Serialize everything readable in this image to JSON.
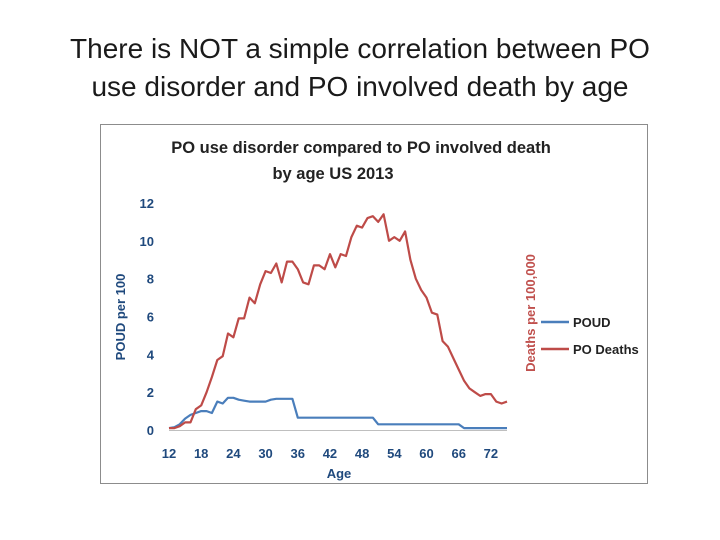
{
  "slide": {
    "title_line1": "There is NOT a simple correlation between PO",
    "title_line2": "use disorder and PO involved death by age"
  },
  "chart_data": {
    "type": "line",
    "title": "PO use disorder compared to PO involved death by age US 2013",
    "title_lines": [
      "PO use disorder compared to PO involved death",
      "by age US 2013"
    ],
    "xlabel": "Age",
    "ylabel": "POUD per 100",
    "y2label": "Deaths per 100,000",
    "xlim": [
      12,
      75
    ],
    "ylim": [
      0,
      12
    ],
    "xticks": [
      12,
      18,
      24,
      30,
      36,
      42,
      48,
      54,
      60,
      66,
      72
    ],
    "yticks": [
      0,
      2,
      4,
      6,
      8,
      10,
      12
    ],
    "legend_position": "right",
    "colors": {
      "POUD": "#4a7ebb",
      "PO Deaths": "#be4b48",
      "axis_left": "#1f497d",
      "axis_right": "#c0504d",
      "tick_x": "#1f497d"
    },
    "series": [
      {
        "name": "POUD",
        "x": [
          12,
          13,
          14,
          15,
          16,
          17,
          18,
          19,
          20,
          21,
          22,
          23,
          24,
          25,
          26,
          27,
          28,
          29,
          30,
          31,
          32,
          33,
          34,
          35,
          36,
          37,
          38,
          39,
          40,
          41,
          42,
          43,
          44,
          45,
          46,
          47,
          48,
          49,
          50,
          51,
          52,
          53,
          54,
          55,
          56,
          57,
          58,
          59,
          60,
          61,
          62,
          63,
          64,
          65,
          66,
          67,
          68,
          69,
          70,
          71,
          72,
          73,
          74,
          75
        ],
        "values": [
          0.1,
          0.15,
          0.3,
          0.6,
          0.8,
          0.9,
          1.0,
          1.0,
          0.9,
          1.5,
          1.4,
          1.7,
          1.7,
          1.6,
          1.55,
          1.5,
          1.5,
          1.5,
          1.5,
          1.6,
          1.65,
          1.65,
          1.65,
          1.65,
          0.65,
          0.65,
          0.65,
          0.65,
          0.65,
          0.65,
          0.65,
          0.65,
          0.65,
          0.65,
          0.65,
          0.65,
          0.65,
          0.65,
          0.65,
          0.3,
          0.3,
          0.3,
          0.3,
          0.3,
          0.3,
          0.3,
          0.3,
          0.3,
          0.3,
          0.3,
          0.3,
          0.3,
          0.3,
          0.3,
          0.3,
          0.1,
          0.1,
          0.1,
          0.1,
          0.1,
          0.1,
          0.1,
          0.1,
          0.1
        ]
      },
      {
        "name": "PO Deaths",
        "x": [
          12,
          13,
          14,
          15,
          16,
          17,
          18,
          19,
          20,
          21,
          22,
          23,
          24,
          25,
          26,
          27,
          28,
          29,
          30,
          31,
          32,
          33,
          34,
          35,
          36,
          37,
          38,
          39,
          40,
          41,
          42,
          43,
          44,
          45,
          46,
          47,
          48,
          49,
          50,
          51,
          52,
          53,
          54,
          55,
          56,
          57,
          58,
          59,
          60,
          61,
          62,
          63,
          64,
          65,
          66,
          67,
          68,
          69,
          70,
          71,
          72,
          73,
          74,
          75
        ],
        "values": [
          0.1,
          0.1,
          0.2,
          0.4,
          0.4,
          1.1,
          1.3,
          2.0,
          2.8,
          3.7,
          3.9,
          5.1,
          4.9,
          5.9,
          5.9,
          7.0,
          6.7,
          7.7,
          8.4,
          8.3,
          8.8,
          7.8,
          8.9,
          8.9,
          8.5,
          7.8,
          7.7,
          8.7,
          8.7,
          8.5,
          9.3,
          8.6,
          9.3,
          9.2,
          10.2,
          10.8,
          10.7,
          11.2,
          11.3,
          11.0,
          11.4,
          10.0,
          10.2,
          10.0,
          10.5,
          9.0,
          8.0,
          7.4,
          7.0,
          6.2,
          6.1,
          4.7,
          4.4,
          3.8,
          3.2,
          2.6,
          2.2,
          2.0,
          1.8,
          1.9,
          1.9,
          1.5,
          1.4,
          1.5
        ]
      }
    ]
  }
}
